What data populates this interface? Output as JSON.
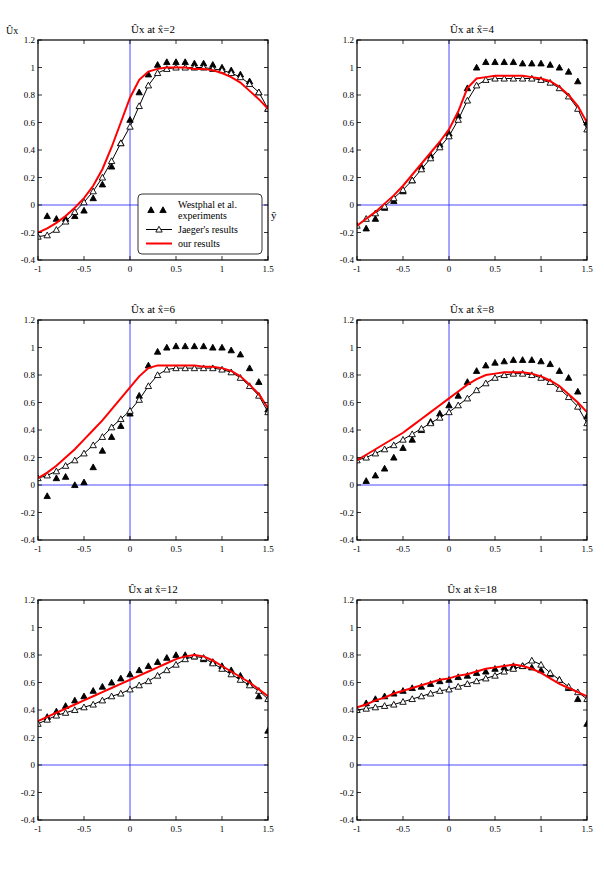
{
  "chart_data": [
    {
      "type": "line",
      "title": "Ûx at  x̂=2",
      "xlabel": "ŷ",
      "ylabel": "Ûx",
      "legend": "lower right",
      "xlim": [
        -1,
        1.5
      ],
      "ylim": [
        -0.4,
        1.2
      ],
      "xticks": [
        -1,
        -0.5,
        0,
        0.5,
        1,
        1.5
      ],
      "yticks": [
        -0.4,
        -0.2,
        0,
        0.2,
        0.4,
        0.6,
        0.8,
        1,
        1.2
      ],
      "x": [
        -1,
        -0.9,
        -0.8,
        -0.7,
        -0.6,
        -0.5,
        -0.4,
        -0.3,
        -0.2,
        -0.1,
        0,
        0.1,
        0.2,
        0.3,
        0.4,
        0.5,
        0.6,
        0.7,
        0.8,
        0.9,
        1,
        1.1,
        1.2,
        1.3,
        1.4,
        1.5
      ],
      "series": [
        {
          "name": "Westphal et al. experiments",
          "type": "scatter",
          "color": "#000000",
          "marker": "triangle",
          "line_style": "none",
          "values": [
            null,
            -0.08,
            -0.1,
            -0.1,
            -0.08,
            -0.04,
            0.05,
            0.15,
            0.28,
            0.45,
            0.62,
            0.82,
            0.95,
            1.02,
            1.04,
            1.04,
            1.04,
            1.03,
            1.03,
            1.02,
            1.0,
            0.98,
            0.95,
            0.9,
            0.82,
            0.7
          ]
        },
        {
          "name": "Jaeger's results",
          "type": "line",
          "color": "#000000",
          "marker": "open-triangle",
          "line_style": "solid",
          "values": [
            -0.23,
            -0.22,
            -0.18,
            -0.12,
            -0.05,
            0.02,
            0.1,
            0.2,
            0.32,
            0.45,
            0.57,
            0.72,
            0.87,
            0.96,
            0.99,
            1.0,
            1.0,
            1.0,
            1.0,
            0.99,
            0.98,
            0.96,
            0.93,
            0.88,
            0.82,
            0.7
          ]
        },
        {
          "name": "our results",
          "type": "line",
          "color": "#ff0000",
          "marker": "none",
          "line_style": "solid",
          "values": [
            -0.2,
            -0.17,
            -0.13,
            -0.08,
            -0.02,
            0.05,
            0.14,
            0.26,
            0.42,
            0.6,
            0.78,
            0.91,
            0.97,
            0.99,
            1.0,
            1.0,
            1.0,
            0.99,
            0.99,
            0.98,
            0.96,
            0.93,
            0.89,
            0.83,
            0.77,
            0.7
          ]
        }
      ]
    },
    {
      "type": "line",
      "title": "Ûx at  x̂=4",
      "xlim": [
        -1,
        1.5
      ],
      "ylim": [
        -0.4,
        1.2
      ],
      "xticks": [
        -1,
        -0.5,
        0,
        0.5,
        1,
        1.5
      ],
      "yticks": [
        -0.4,
        -0.2,
        0,
        0.2,
        0.4,
        0.6,
        0.8,
        1,
        1.2
      ],
      "x": [
        -1,
        -0.9,
        -0.8,
        -0.7,
        -0.6,
        -0.5,
        -0.4,
        -0.3,
        -0.2,
        -0.1,
        0,
        0.1,
        0.2,
        0.3,
        0.4,
        0.5,
        0.6,
        0.7,
        0.8,
        0.9,
        1,
        1.1,
        1.2,
        1.3,
        1.4,
        1.5
      ],
      "series": [
        {
          "name": "Westphal et al. experiments",
          "type": "scatter",
          "color": "#000000",
          "marker": "triangle",
          "line_style": "none",
          "values": [
            null,
            -0.17,
            -0.1,
            -0.02,
            0.03,
            0.1,
            0.18,
            0.28,
            0.36,
            0.44,
            0.52,
            0.65,
            0.85,
            1.0,
            1.04,
            1.04,
            1.04,
            1.04,
            1.03,
            1.03,
            1.03,
            1.02,
            1.0,
            0.97,
            0.9,
            0.6
          ]
        },
        {
          "name": "Jaeger's results",
          "type": "line",
          "color": "#000000",
          "marker": "open-triangle",
          "line_style": "solid",
          "values": [
            -0.15,
            -0.1,
            -0.06,
            -0.01,
            0.05,
            0.11,
            0.18,
            0.26,
            0.34,
            0.42,
            0.5,
            0.62,
            0.76,
            0.87,
            0.91,
            0.92,
            0.92,
            0.92,
            0.92,
            0.92,
            0.91,
            0.89,
            0.85,
            0.79,
            0.7,
            0.55
          ]
        },
        {
          "name": "our results",
          "type": "line",
          "color": "#ff0000",
          "marker": "none",
          "line_style": "solid",
          "values": [
            -0.15,
            -0.1,
            -0.05,
            0.01,
            0.07,
            0.14,
            0.22,
            0.3,
            0.38,
            0.46,
            0.55,
            0.68,
            0.85,
            0.92,
            0.93,
            0.94,
            0.94,
            0.94,
            0.94,
            0.93,
            0.92,
            0.9,
            0.86,
            0.8,
            0.72,
            0.6
          ]
        }
      ]
    },
    {
      "type": "line",
      "title": "Ûx at  x̂=6",
      "xlim": [
        -1,
        1.5
      ],
      "ylim": [
        -0.4,
        1.2
      ],
      "xticks": [
        -1,
        -0.5,
        0,
        0.5,
        1,
        1.5
      ],
      "yticks": [
        -0.4,
        -0.2,
        0,
        0.2,
        0.4,
        0.6,
        0.8,
        1,
        1.2
      ],
      "x": [
        -1,
        -0.9,
        -0.8,
        -0.7,
        -0.6,
        -0.5,
        -0.4,
        -0.3,
        -0.2,
        -0.1,
        0,
        0.1,
        0.2,
        0.3,
        0.4,
        0.5,
        0.6,
        0.7,
        0.8,
        0.9,
        1,
        1.1,
        1.2,
        1.3,
        1.4,
        1.5
      ],
      "series": [
        {
          "name": "Westphal et al. experiments",
          "type": "scatter",
          "color": "#000000",
          "marker": "triangle",
          "line_style": "none",
          "values": [
            null,
            -0.08,
            0.05,
            0.06,
            0.0,
            0.02,
            0.13,
            0.25,
            0.35,
            0.43,
            0.52,
            0.65,
            0.87,
            0.97,
            1.0,
            1.01,
            1.01,
            1.01,
            1.01,
            1.0,
            1.0,
            0.98,
            0.95,
            0.85,
            0.75,
            0.55
          ]
        },
        {
          "name": "Jaeger's results",
          "type": "line",
          "color": "#000000",
          "marker": "open-triangle",
          "line_style": "solid",
          "values": [
            0.05,
            0.07,
            0.1,
            0.14,
            0.18,
            0.23,
            0.29,
            0.35,
            0.42,
            0.48,
            0.54,
            0.62,
            0.72,
            0.8,
            0.84,
            0.85,
            0.85,
            0.85,
            0.85,
            0.85,
            0.84,
            0.82,
            0.78,
            0.72,
            0.65,
            0.53
          ]
        },
        {
          "name": "our results",
          "type": "line",
          "color": "#ff0000",
          "marker": "none",
          "line_style": "solid",
          "values": [
            0.05,
            0.09,
            0.14,
            0.2,
            0.26,
            0.33,
            0.4,
            0.47,
            0.55,
            0.63,
            0.71,
            0.79,
            0.85,
            0.87,
            0.87,
            0.87,
            0.87,
            0.87,
            0.86,
            0.86,
            0.85,
            0.83,
            0.79,
            0.73,
            0.66,
            0.56
          ]
        }
      ]
    },
    {
      "type": "line",
      "title": "Ûx at  x̂=8",
      "xlim": [
        -1,
        1.5
      ],
      "ylim": [
        -0.4,
        1.2
      ],
      "xticks": [
        -1,
        -0.5,
        0,
        0.5,
        1,
        1.5
      ],
      "yticks": [
        -0.4,
        -0.2,
        0,
        0.2,
        0.4,
        0.6,
        0.8,
        1,
        1.2
      ],
      "x": [
        -1,
        -0.9,
        -0.8,
        -0.7,
        -0.6,
        -0.5,
        -0.4,
        -0.3,
        -0.2,
        -0.1,
        0,
        0.1,
        0.2,
        0.3,
        0.4,
        0.5,
        0.6,
        0.7,
        0.8,
        0.9,
        1,
        1.1,
        1.2,
        1.3,
        1.4,
        1.5
      ],
      "series": [
        {
          "name": "Westphal et al. experiments",
          "type": "scatter",
          "color": "#000000",
          "marker": "triangle",
          "line_style": "none",
          "values": [
            null,
            0.03,
            0.07,
            0.12,
            0.2,
            0.27,
            0.33,
            0.4,
            0.46,
            0.52,
            0.58,
            0.65,
            0.75,
            0.83,
            0.87,
            0.89,
            0.9,
            0.91,
            0.91,
            0.91,
            0.9,
            0.88,
            0.83,
            0.78,
            0.68,
            0.5
          ]
        },
        {
          "name": "Jaeger's results",
          "type": "line",
          "color": "#000000",
          "marker": "open-triangle",
          "line_style": "solid",
          "values": [
            0.18,
            0.2,
            0.23,
            0.26,
            0.29,
            0.33,
            0.37,
            0.41,
            0.45,
            0.49,
            0.53,
            0.58,
            0.63,
            0.69,
            0.74,
            0.78,
            0.8,
            0.81,
            0.81,
            0.8,
            0.78,
            0.75,
            0.7,
            0.64,
            0.57,
            0.45
          ]
        },
        {
          "name": "our results",
          "type": "line",
          "color": "#ff0000",
          "marker": "none",
          "line_style": "solid",
          "values": [
            0.18,
            0.22,
            0.26,
            0.3,
            0.34,
            0.38,
            0.43,
            0.48,
            0.53,
            0.58,
            0.63,
            0.68,
            0.73,
            0.77,
            0.8,
            0.81,
            0.82,
            0.82,
            0.82,
            0.81,
            0.79,
            0.76,
            0.72,
            0.66,
            0.6,
            0.53
          ]
        }
      ]
    },
    {
      "type": "line",
      "title": "Ûx at  x̂=12",
      "xlim": [
        -1,
        1.5
      ],
      "ylim": [
        -0.4,
        1.2
      ],
      "xticks": [
        -1,
        -0.5,
        0,
        0.5,
        1,
        1.5
      ],
      "yticks": [
        -0.4,
        -0.2,
        0,
        0.2,
        0.4,
        0.6,
        0.8,
        1,
        1.2
      ],
      "x": [
        -1,
        -0.9,
        -0.8,
        -0.7,
        -0.6,
        -0.5,
        -0.4,
        -0.3,
        -0.2,
        -0.1,
        0,
        0.1,
        0.2,
        0.3,
        0.4,
        0.5,
        0.6,
        0.7,
        0.8,
        0.9,
        1,
        1.1,
        1.2,
        1.3,
        1.4,
        1.5
      ],
      "series": [
        {
          "name": "Westphal et al. experiments",
          "type": "scatter",
          "color": "#000000",
          "marker": "triangle",
          "line_style": "none",
          "values": [
            null,
            0.35,
            0.39,
            0.43,
            0.47,
            0.5,
            0.54,
            0.57,
            0.6,
            0.63,
            0.66,
            0.69,
            0.72,
            0.75,
            0.78,
            0.8,
            0.8,
            0.79,
            0.77,
            0.75,
            0.72,
            0.69,
            0.65,
            0.6,
            0.5,
            0.25
          ]
        },
        {
          "name": "Jaeger's results",
          "type": "line",
          "color": "#000000",
          "marker": "open-triangle",
          "line_style": "solid",
          "values": [
            0.3,
            0.33,
            0.36,
            0.38,
            0.4,
            0.42,
            0.44,
            0.47,
            0.5,
            0.52,
            0.55,
            0.58,
            0.61,
            0.65,
            0.69,
            0.73,
            0.77,
            0.79,
            0.78,
            0.74,
            0.7,
            0.66,
            0.62,
            0.58,
            0.54,
            0.48
          ]
        },
        {
          "name": "our results",
          "type": "line",
          "color": "#ff0000",
          "marker": "none",
          "line_style": "solid",
          "values": [
            0.32,
            0.35,
            0.38,
            0.41,
            0.44,
            0.47,
            0.5,
            0.53,
            0.56,
            0.59,
            0.62,
            0.65,
            0.68,
            0.71,
            0.74,
            0.77,
            0.79,
            0.8,
            0.79,
            0.76,
            0.72,
            0.68,
            0.64,
            0.6,
            0.55,
            0.5
          ]
        }
      ]
    },
    {
      "type": "line",
      "title": "Ûx at  x̂=18",
      "xlim": [
        -1,
        1.5
      ],
      "ylim": [
        -0.4,
        1.2
      ],
      "xticks": [
        -1,
        -0.5,
        0,
        0.5,
        1,
        1.5
      ],
      "yticks": [
        -0.4,
        -0.2,
        0,
        0.2,
        0.4,
        0.6,
        0.8,
        1,
        1.2
      ],
      "x": [
        -1,
        -0.9,
        -0.8,
        -0.7,
        -0.6,
        -0.5,
        -0.4,
        -0.3,
        -0.2,
        -0.1,
        0,
        0.1,
        0.2,
        0.3,
        0.4,
        0.5,
        0.6,
        0.7,
        0.8,
        0.9,
        1,
        1.1,
        1.2,
        1.3,
        1.4,
        1.5
      ],
      "series": [
        {
          "name": "Westphal et al. experiments",
          "type": "scatter",
          "color": "#000000",
          "marker": "triangle",
          "line_style": "none",
          "values": [
            null,
            0.45,
            0.48,
            0.5,
            0.52,
            0.54,
            0.56,
            0.57,
            0.59,
            0.61,
            0.62,
            0.64,
            0.65,
            0.67,
            0.68,
            0.7,
            0.71,
            0.72,
            0.72,
            0.71,
            0.69,
            0.66,
            0.62,
            0.56,
            0.48,
            0.3
          ]
        },
        {
          "name": "Jaeger's results",
          "type": "line",
          "color": "#000000",
          "marker": "open-triangle",
          "line_style": "solid",
          "values": [
            0.4,
            0.41,
            0.42,
            0.43,
            0.44,
            0.46,
            0.48,
            0.5,
            0.52,
            0.54,
            0.55,
            0.57,
            0.59,
            0.61,
            0.63,
            0.65,
            0.68,
            0.7,
            0.72,
            0.76,
            0.73,
            0.67,
            0.62,
            0.57,
            0.53,
            0.48
          ]
        },
        {
          "name": "our results",
          "type": "line",
          "color": "#ff0000",
          "marker": "none",
          "line_style": "solid",
          "values": [
            0.42,
            0.44,
            0.47,
            0.49,
            0.52,
            0.54,
            0.56,
            0.58,
            0.6,
            0.62,
            0.63,
            0.65,
            0.66,
            0.68,
            0.7,
            0.71,
            0.72,
            0.73,
            0.72,
            0.7,
            0.67,
            0.63,
            0.59,
            0.56,
            0.53,
            0.5
          ]
        }
      ]
    }
  ]
}
